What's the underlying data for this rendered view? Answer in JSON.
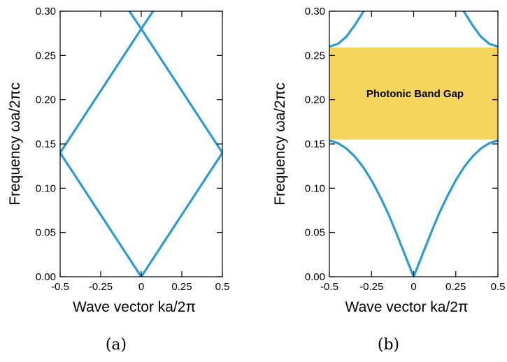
{
  "chart_data": [
    {
      "type": "line",
      "caption": "(a)",
      "xlabel": "Wave vector  ka/2π",
      "ylabel": "Frequency  ωa/2πc",
      "xlim": [
        -0.5,
        0.5
      ],
      "ylim": [
        0.0,
        0.3
      ],
      "x_ticks": [
        "-0.5",
        "-0.25",
        "0",
        "0.25",
        "0.5"
      ],
      "y_ticks": [
        "0.00",
        "0.05",
        "0.10",
        "0.15",
        "0.20",
        "0.25",
        "0.30"
      ],
      "grid": false,
      "line_color": "#2b9bd6",
      "series": [
        {
          "x": [
            -0.5,
            0,
            0.5
          ],
          "y": [
            0.14,
            0.0,
            0.14
          ]
        },
        {
          "x": [
            -0.5,
            0,
            0.08
          ],
          "y": [
            0.14,
            0.28,
            0.302
          ]
        },
        {
          "x": [
            -0.08,
            0,
            0.5
          ],
          "y": [
            0.302,
            0.28,
            0.14
          ]
        }
      ]
    },
    {
      "type": "line",
      "caption": "(b)",
      "xlabel": "Wave vector  ka/2π",
      "ylabel": "Frequency  ωa/2πc",
      "xlim": [
        -0.5,
        0.5
      ],
      "ylim": [
        0.0,
        0.3
      ],
      "x_ticks": [
        "-0.5",
        "-0.25",
        "0",
        "0.25",
        "0.5"
      ],
      "y_ticks": [
        "0.00",
        "0.05",
        "0.10",
        "0.15",
        "0.20",
        "0.25",
        "0.30"
      ],
      "grid": false,
      "line_color": "#2b9bd6",
      "band_gap": {
        "label": "Photonic Band Gap",
        "y_min": 0.155,
        "y_max": 0.259,
        "color": "#f6d55c"
      },
      "series": [
        {
          "x": [
            -0.5,
            -0.45,
            -0.4,
            -0.35,
            -0.3,
            -0.25,
            -0.2,
            -0.15,
            -0.1,
            -0.05,
            0,
            0.05,
            0.1,
            0.15,
            0.2,
            0.25,
            0.3,
            0.35,
            0.4,
            0.45,
            0.5
          ],
          "y": [
            0.154,
            0.151,
            0.145,
            0.136,
            0.124,
            0.109,
            0.091,
            0.071,
            0.048,
            0.024,
            0.0,
            0.024,
            0.048,
            0.071,
            0.091,
            0.109,
            0.124,
            0.136,
            0.145,
            0.151,
            0.154
          ]
        },
        {
          "x": [
            -0.5,
            -0.45,
            -0.4,
            -0.35,
            -0.3,
            -0.28
          ],
          "y": [
            0.26,
            0.263,
            0.271,
            0.284,
            0.299,
            0.304
          ]
        },
        {
          "x": [
            0.28,
            0.3,
            0.35,
            0.4,
            0.45,
            0.5
          ],
          "y": [
            0.304,
            0.299,
            0.284,
            0.271,
            0.263,
            0.26
          ]
        }
      ]
    }
  ]
}
